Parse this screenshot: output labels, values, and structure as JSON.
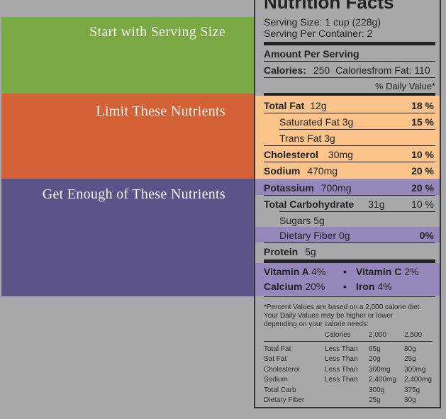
{
  "bands": {
    "serving": "Start with Serving Size",
    "limit": "Limit These Nutrients",
    "enough": "Get Enough of These Nutrients"
  },
  "label": {
    "title": "Nutrition Facts",
    "serving_size": "Serving Size: 1 cup (228g)",
    "servings_per_container": "Serving Per Container: 2",
    "amount_per_serving": "Amount Per Serving",
    "calories_label": "Calories:",
    "calories_value": "250",
    "calories_fat": "Caloriesfrom Fat: 110",
    "daily_value_header": "% Daily Value*",
    "total_fat": {
      "name": "Total Fat",
      "amount": "12g",
      "pct": "18 %"
    },
    "saturated_fat": {
      "name": "Saturated Fat 3g",
      "pct": "15 %"
    },
    "trans_fat": {
      "name": "Trans Fat 3g"
    },
    "cholesterol": {
      "name": "Cholesterol",
      "amount": "30mg",
      "pct": "10 %"
    },
    "sodium": {
      "name": "Sodium",
      "amount": "470mg",
      "pct": "20 %"
    },
    "potassium": {
      "name": "Potassium",
      "amount": "700mg",
      "pct": "20 %"
    },
    "total_carb": {
      "name": "Total Carbohydrate",
      "amount": "31g",
      "pct": "10 %"
    },
    "sugars": {
      "name": "Sugars 5g"
    },
    "fiber": {
      "name": "Dietary Fiber 0g",
      "pct": "0%"
    },
    "protein": {
      "name": "Protein",
      "amount": "5g"
    },
    "vitamin_a": {
      "name": "Vitamin A",
      "amount": "4%"
    },
    "vitamin_c": {
      "name": "Vitamin C",
      "amount": "2%"
    },
    "calcium": {
      "name": "Calcium",
      "amount": "20%"
    },
    "iron": {
      "name": "Iron",
      "amount": "4%"
    },
    "bullet": "•",
    "footnote_1": "*Percent Values are based on a 2,000 calorie diet.",
    "footnote_2": "Your Daily Values may be higher or lower",
    "footnote_3": "depending on your calorie needs:",
    "table": {
      "header": [
        "",
        "Calories",
        "2,000",
        "2,500"
      ],
      "rows": [
        [
          "Total Fat",
          "Less Than",
          "65g",
          "80g"
        ],
        [
          "Sat Fat",
          "Less Than",
          "20g",
          "25g"
        ],
        [
          "Cholesterol",
          "Less Than",
          "300mg",
          "300mg"
        ],
        [
          "Sodium",
          "Less Than",
          "2,400mg",
          "2,400mg"
        ],
        [
          "Total Carb",
          "",
          "300g",
          "375g"
        ],
        [
          "Dietary Fiber",
          "",
          "25g",
          "30g"
        ]
      ]
    }
  }
}
